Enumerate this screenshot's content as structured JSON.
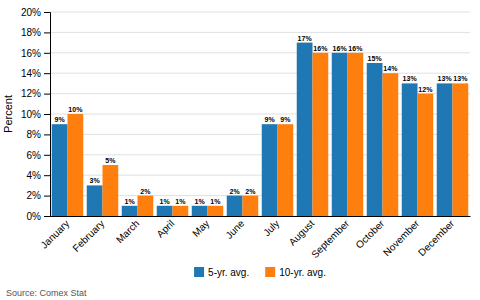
{
  "chart_data": {
    "type": "bar",
    "categories": [
      "January",
      "February",
      "March",
      "April",
      "May",
      "June",
      "July",
      "August",
      "September",
      "October",
      "November",
      "December"
    ],
    "series": [
      {
        "name": "5-yr. avg.",
        "values": [
          9,
          3,
          1,
          1,
          1,
          2,
          9,
          17,
          16,
          15,
          13,
          13
        ],
        "value_labels": [
          "9%",
          "3%",
          "1%",
          "1%",
          "1%",
          "2%",
          "9%",
          "17%",
          "16%",
          "15%",
          "13%",
          "13%"
        ]
      },
      {
        "name": "10-yr. avg.",
        "values": [
          10,
          5,
          2,
          1,
          1,
          2,
          9,
          16,
          16,
          14,
          12,
          13
        ],
        "value_labels": [
          "10%",
          "5%",
          "2%",
          "1%",
          "1%",
          "2%",
          "9%",
          "16%",
          "16%",
          "14%",
          "12%",
          "13%"
        ]
      }
    ],
    "ylabel": "Percent",
    "ylim": [
      0,
      20
    ],
    "yticks": [
      {
        "value": 0,
        "label": "0%"
      },
      {
        "value": 2,
        "label": "2%"
      },
      {
        "value": 4,
        "label": "4%"
      },
      {
        "value": 6,
        "label": "6%"
      },
      {
        "value": 8,
        "label": "8%"
      },
      {
        "value": 10,
        "label": "10%"
      },
      {
        "value": 12,
        "label": "12%"
      },
      {
        "value": 14,
        "label": "14%"
      },
      {
        "value": 16,
        "label": "16%"
      },
      {
        "value": 18,
        "label": "18%"
      },
      {
        "value": 20,
        "label": "20%"
      }
    ],
    "grid": true,
    "data_labels": true,
    "legend": "bottom",
    "source": "Source: Comex Stat"
  }
}
